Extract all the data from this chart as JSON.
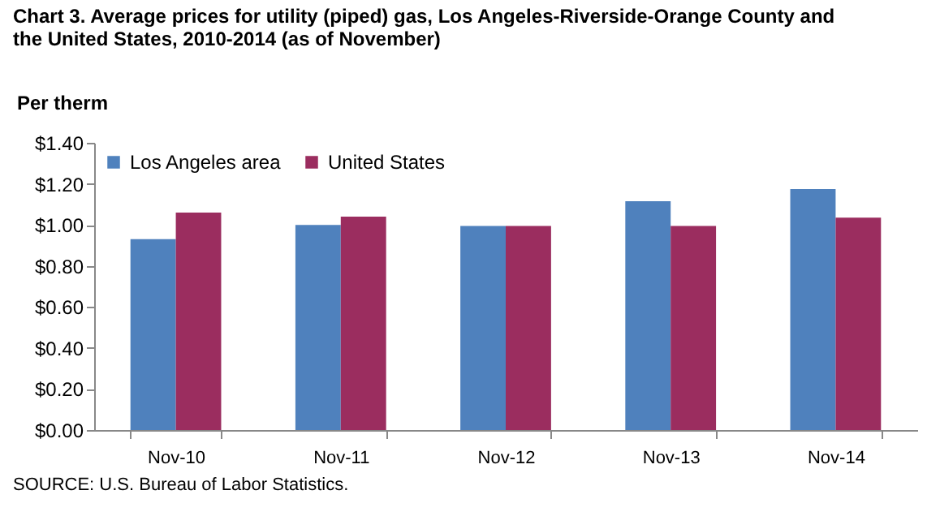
{
  "chart_data": {
    "type": "bar",
    "title": "Chart 3. Average prices for utility (piped) gas, Los Angeles-Riverside-Orange County and the United States, 2010-2014 (as of November)",
    "ylabel": "Per therm",
    "categories": [
      "Nov-10",
      "Nov-11",
      "Nov-12",
      "Nov-13",
      "Nov-14"
    ],
    "series": [
      {
        "name": "Los Angeles area",
        "color": "#4f81bd",
        "values": [
          0.93,
          1.0,
          0.995,
          1.115,
          1.175
        ]
      },
      {
        "name": "United States",
        "color": "#9b2d5f",
        "values": [
          1.06,
          1.04,
          0.995,
          0.995,
          1.035
        ]
      }
    ],
    "ylim": [
      0,
      1.4
    ],
    "yticks": [
      {
        "value": 0,
        "label": "$0.00"
      },
      {
        "value": 0.2,
        "label": "$0.20"
      },
      {
        "value": 0.4,
        "label": "$0.40"
      },
      {
        "value": 0.6,
        "label": "$0.60"
      },
      {
        "value": 0.8,
        "label": "$0.80"
      },
      {
        "value": 1.0,
        "label": "$1.00"
      },
      {
        "value": 1.2,
        "label": "$1.20"
      },
      {
        "value": 1.4,
        "label": "$1.40"
      }
    ],
    "legend": "top left",
    "grid": false,
    "annotations": [
      "SOURCE: U.S. Bureau of Labor Statistics."
    ]
  }
}
